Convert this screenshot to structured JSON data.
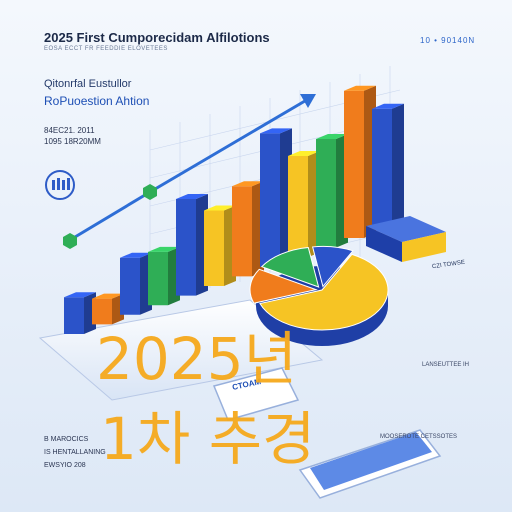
{
  "header": {
    "title": "2025 First Cumporecidam Alfilotions",
    "subtitle": "EOSA ECCT FR FEEDDIE ELOVETEES",
    "code": "10 • 90140N"
  },
  "heading": {
    "line1": "Qitonrfal Eustullor",
    "line2": "RoPuoestion Ahtion"
  },
  "dates": {
    "line1": "84EC21. 2011",
    "line2": "1095 18R20MM"
  },
  "labels": {
    "pie": "CZI TOWSE",
    "right": "LANSEUTTEE IH",
    "phone": "CTOAM"
  },
  "footer": {
    "line1": "B MAROCICS",
    "line2": "IS HENTALLANING",
    "line3": "EWSYIO 208",
    "right": "MOOSEROTE CETSSOTES"
  },
  "overlay": {
    "line1": "2025년",
    "line2": "1차 추경"
  },
  "colors": {
    "blue": "#2b53c9",
    "green": "#2fae56",
    "yellow": "#f6c424",
    "orange": "#f07c1c",
    "overlay": "#f6a91c"
  },
  "chart_data": {
    "type": "bar",
    "bars": [
      {
        "color": "blue",
        "value": 40
      },
      {
        "color": "orange",
        "value": 28
      },
      {
        "color": "blue",
        "value": 62
      },
      {
        "color": "green",
        "value": 58
      },
      {
        "color": "blue",
        "value": 105
      },
      {
        "color": "yellow",
        "value": 82
      },
      {
        "color": "orange",
        "value": 98
      },
      {
        "color": "blue",
        "value": 145
      },
      {
        "color": "yellow",
        "value": 110
      },
      {
        "color": "green",
        "value": 118
      },
      {
        "color": "orange",
        "value": 160
      },
      {
        "color": "blue",
        "value": 130
      }
    ],
    "pie": [
      {
        "color": "yellow",
        "value": 62
      },
      {
        "color": "orange",
        "value": 14
      },
      {
        "color": "green",
        "value": 14
      },
      {
        "color": "blue",
        "value": 10
      }
    ]
  }
}
